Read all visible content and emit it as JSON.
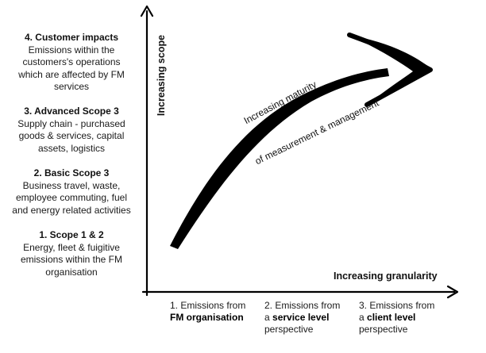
{
  "y_axis_label": "Increasing scope",
  "x_axis_label": "Increasing granularity",
  "arrow_label_line1": "Increasing maturity",
  "arrow_label_line2": "of measurement & management",
  "scope_levels": [
    {
      "title": "4. Customer impacts",
      "lines": [
        "Emissions within the",
        "customers's operations",
        "which are affected by FM",
        "services"
      ]
    },
    {
      "title": "3. Advanced Scope 3",
      "lines": [
        "Supply chain - purchased",
        "goods & services, capital",
        "assets, logistics"
      ]
    },
    {
      "title": "2. Basic Scope 3",
      "lines": [
        "Business travel, waste,",
        "employee commuting, fuel",
        "and energy related activities"
      ]
    },
    {
      "title": "1. Scope 1 & 2",
      "lines": [
        "Energy, fleet & fuigitive",
        "emissions within the FM",
        "organisation"
      ]
    }
  ],
  "granularity_levels": [
    {
      "prefix": "1. Emissions from",
      "bold": "FM organisation",
      "suffix": ""
    },
    {
      "prefix": "2. Emissions from",
      "pre2": "a ",
      "bold": "service level",
      "suffix": "perspective"
    },
    {
      "prefix": "3. Emissions from",
      "pre2": "a ",
      "bold": "client level",
      "suffix": "perspective"
    }
  ],
  "colors": {
    "ink": "#000000",
    "text": "#111111"
  }
}
